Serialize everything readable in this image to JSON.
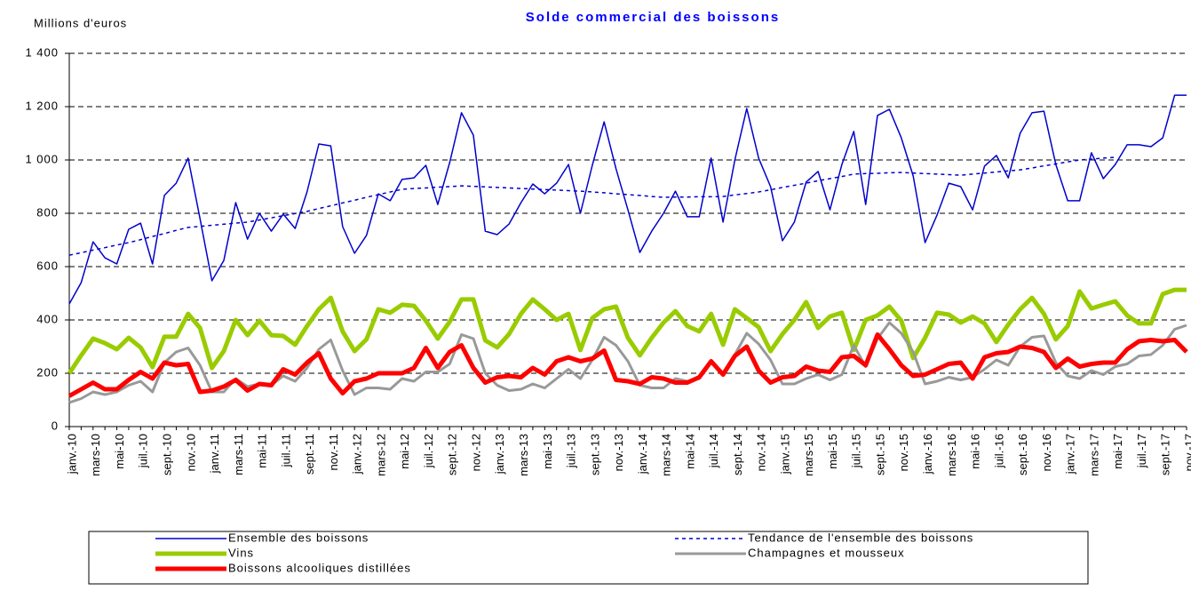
{
  "chart_data": {
    "type": "line",
    "title": "Solde commercial des boissons",
    "y_axis_label": "Millions d'euros",
    "categories": [
      "janv.-10",
      null,
      "mars-10",
      null,
      "mai-10",
      null,
      "juil.-10",
      null,
      "sept.-10",
      null,
      "nov.-10",
      null,
      "janv.-11",
      null,
      "mars-11",
      null,
      "mai-11",
      null,
      "juil.-11",
      null,
      "sept.-11",
      null,
      "nov.-11",
      null,
      "janv.-12",
      null,
      "mars-12",
      null,
      "mai-12",
      null,
      "juil.-12",
      null,
      "sept.-12",
      null,
      "nov.-12",
      null,
      "janv.-13",
      null,
      "mars-13",
      null,
      "mai-13",
      null,
      "juil.-13",
      null,
      "sept.-13",
      null,
      "nov.-13",
      null,
      "janv.-14",
      null,
      "mars-14",
      null,
      "mai-14",
      null,
      "juil.-14",
      null,
      "sept.-14",
      null,
      "nov.-14",
      null,
      "janv.-15",
      null,
      "mars-15",
      null,
      "mai-15",
      null,
      "juil.-15",
      null,
      "sept.-15",
      null,
      "nov.-15",
      null,
      "janv.-16",
      null,
      "mars-16",
      null,
      "mai-16",
      null,
      "juil.-16",
      null,
      "sept.-16",
      null,
      "nov.-16",
      null,
      "janv.-17",
      null,
      "mars-17",
      null,
      "mai-17",
      null,
      "juil.-17",
      null,
      "sept.-17",
      null,
      "nov.-17"
    ],
    "ylim": [
      0,
      1400
    ],
    "yticks": [
      0,
      200,
      400,
      600,
      800,
      {
        "value": 1000,
        "label": "1 000"
      },
      {
        "value": 1200,
        "label": "1 200"
      },
      {
        "value": 1400,
        "label": "1 400"
      }
    ],
    "grid": true,
    "series": [
      {
        "name": "Ensemble des boissons",
        "color": "#0000cc",
        "line_style": "solid",
        "values": [
          460,
          540,
          693,
          633,
          610,
          740,
          763,
          610,
          867,
          913,
          1007,
          780,
          547,
          623,
          840,
          703,
          800,
          733,
          797,
          743,
          880,
          1060,
          1053,
          750,
          650,
          717,
          873,
          847,
          927,
          933,
          980,
          833,
          990,
          1177,
          1093,
          733,
          720,
          760,
          840,
          910,
          873,
          913,
          983,
          800,
          980,
          1143,
          967,
          813,
          653,
          733,
          800,
          883,
          787,
          787,
          1007,
          767,
          1000,
          1193,
          1007,
          900,
          697,
          767,
          917,
          957,
          813,
          983,
          1107,
          833,
          1167,
          1190,
          1083,
          940,
          690,
          793,
          913,
          900,
          813,
          977,
          1017,
          933,
          1100,
          1177,
          1183,
          983,
          847,
          847,
          1027,
          930,
          983,
          1057,
          1057,
          1050,
          1083,
          1243,
          1243
        ]
      },
      {
        "name": "Tendance de l'ensemble des boissons",
        "color": "#0000cc",
        "line_style": "dashed",
        "values": [
          643,
          652,
          662,
          671,
          681,
          690,
          701,
          713,
          724,
          736,
          747,
          751,
          755,
          759,
          763,
          767,
          775,
          783,
          791,
          799,
          807,
          818,
          828,
          839,
          849,
          860,
          870,
          880,
          890,
          893,
          895,
          898,
          900,
          903,
          901,
          899,
          897,
          895,
          893,
          891,
          889,
          887,
          885,
          883,
          880,
          877,
          873,
          870,
          867,
          863,
          860,
          861,
          861,
          862,
          862,
          863,
          869,
          874,
          880,
          888,
          897,
          905,
          913,
          922,
          930,
          938,
          947,
          949,
          950,
          952,
          953,
          951,
          949,
          947,
          945,
          943,
          947,
          951,
          955,
          959,
          963,
          970,
          978,
          985,
          993,
          1000,
          1003,
          1007,
          1010,
          null,
          null,
          null,
          null,
          null,
          null
        ]
      },
      {
        "name": "Vins",
        "color": "#99cc00",
        "line_style": "solid",
        "values": [
          200,
          267,
          330,
          313,
          290,
          333,
          297,
          223,
          337,
          337,
          423,
          370,
          220,
          283,
          400,
          343,
          397,
          343,
          340,
          307,
          377,
          440,
          483,
          357,
          283,
          327,
          440,
          427,
          457,
          453,
          397,
          330,
          393,
          477,
          477,
          323,
          297,
          347,
          423,
          477,
          440,
          400,
          423,
          287,
          407,
          440,
          450,
          333,
          267,
          333,
          390,
          433,
          377,
          357,
          423,
          307,
          440,
          407,
          373,
          283,
          347,
          400,
          467,
          370,
          413,
          427,
          287,
          400,
          417,
          450,
          397,
          257,
          333,
          427,
          420,
          390,
          413,
          387,
          317,
          383,
          440,
          483,
          423,
          327,
          377,
          507,
          443,
          457,
          470,
          417,
          387,
          387,
          497,
          513,
          513
        ]
      },
      {
        "name": "Champagnes et mousseux",
        "color": "#999999",
        "line_style": "solid",
        "values": [
          90,
          105,
          130,
          120,
          130,
          155,
          170,
          130,
          240,
          280,
          295,
          230,
          130,
          130,
          180,
          150,
          160,
          155,
          190,
          170,
          220,
          290,
          325,
          210,
          120,
          145,
          145,
          140,
          180,
          170,
          205,
          205,
          235,
          345,
          330,
          200,
          155,
          135,
          140,
          160,
          145,
          180,
          215,
          180,
          250,
          335,
          305,
          245,
          155,
          145,
          145,
          180,
          170,
          180,
          240,
          200,
          270,
          350,
          310,
          250,
          160,
          160,
          180,
          195,
          175,
          195,
          305,
          225,
          330,
          390,
          350,
          280,
          160,
          170,
          185,
          175,
          185,
          215,
          250,
          230,
          300,
          335,
          340,
          240,
          190,
          180,
          210,
          195,
          225,
          235,
          265,
          270,
          305,
          365,
          380
        ]
      },
      {
        "name": "Boissons alcooliques distillées",
        "color": "#ff0000",
        "line_style": "solid",
        "values": [
          115,
          140,
          165,
          140,
          140,
          175,
          205,
          180,
          240,
          230,
          235,
          130,
          135,
          150,
          175,
          135,
          160,
          155,
          215,
          195,
          240,
          275,
          180,
          125,
          170,
          180,
          200,
          200,
          200,
          220,
          295,
          220,
          280,
          305,
          220,
          165,
          185,
          190,
          185,
          220,
          195,
          245,
          260,
          245,
          255,
          285,
          175,
          170,
          160,
          185,
          180,
          165,
          165,
          185,
          245,
          195,
          265,
          300,
          210,
          165,
          185,
          190,
          225,
          210,
          205,
          260,
          265,
          230,
          345,
          290,
          230,
          190,
          195,
          215,
          235,
          240,
          180,
          260,
          275,
          280,
          300,
          295,
          280,
          220,
          255,
          225,
          235,
          240,
          240,
          290,
          320,
          325,
          320,
          325,
          280
        ]
      }
    ]
  }
}
